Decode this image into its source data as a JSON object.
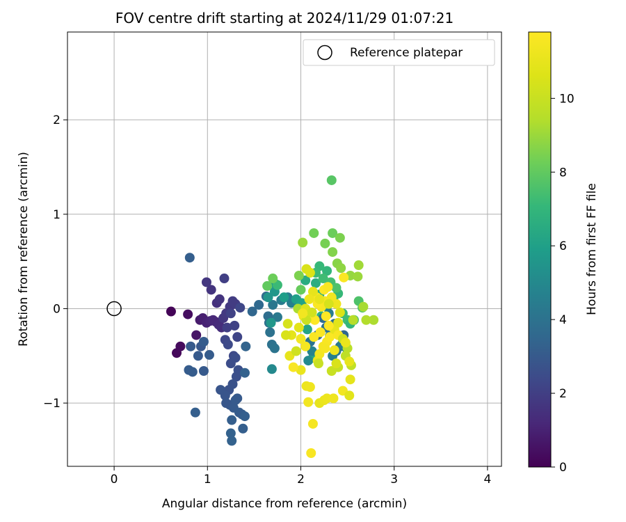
{
  "chart_data": {
    "type": "scatter",
    "title": "FOV centre drift starting at 2024/11/29 01:07:21",
    "xlabel": "Angular distance from reference (arcmin)",
    "ylabel": "Rotation from reference (arcmin)",
    "xlim": [
      -0.5,
      4.15
    ],
    "ylim": [
      -1.67,
      2.93
    ],
    "xticks": [
      0,
      1,
      2,
      3,
      4
    ],
    "yticks": [
      -1,
      0,
      1,
      2
    ],
    "xtick_labels": [
      "0",
      "1",
      "2",
      "3",
      "4"
    ],
    "ytick_labels": [
      "−1",
      "0",
      "1",
      "2"
    ],
    "grid": true,
    "legend": {
      "label": "Reference platepar",
      "position": "top-right"
    },
    "reference_point": {
      "x": 0,
      "y": 0
    },
    "colorbar": {
      "label": "Hours from first FF file",
      "range": [
        0,
        11.8
      ],
      "ticks": [
        0,
        2,
        4,
        6,
        8,
        10
      ],
      "tick_labels": [
        "0",
        "2",
        "4",
        "6",
        "8",
        "10"
      ],
      "colormap": "viridis"
    },
    "series": [
      {
        "points": [
          [
            0.61,
            -0.03,
            0.1
          ],
          [
            0.67,
            -0.47,
            0.2
          ],
          [
            0.71,
            -0.4,
            0.3
          ],
          [
            0.79,
            -0.06,
            0.4
          ],
          [
            0.88,
            -0.28,
            0.6
          ],
          [
            0.92,
            -0.12,
            0.8
          ],
          [
            0.95,
            -0.1,
            0.9
          ],
          [
            0.99,
            -0.15,
            1.0
          ],
          [
            1.03,
            -0.13,
            1.1
          ],
          [
            1.06,
            -0.12,
            1.2
          ],
          [
            1.09,
            -0.14,
            1.2
          ],
          [
            1.12,
            -0.17,
            1.3
          ],
          [
            1.15,
            -0.2,
            1.4
          ],
          [
            1.1,
            0.06,
            1.5
          ],
          [
            1.13,
            0.1,
            1.6
          ],
          [
            1.04,
            0.2,
            1.6
          ],
          [
            0.99,
            0.28,
            1.7
          ],
          [
            1.17,
            -0.1,
            1.7
          ],
          [
            1.2,
            -0.05,
            1.8
          ],
          [
            1.24,
            0.02,
            1.8
          ],
          [
            1.27,
            0.08,
            1.9
          ],
          [
            1.3,
            0.05,
            1.9
          ],
          [
            1.18,
            0.32,
            2.0
          ],
          [
            1.21,
            -0.2,
            2.0
          ],
          [
            1.25,
            -0.05,
            2.1
          ],
          [
            1.29,
            -0.18,
            2.1
          ],
          [
            1.32,
            -0.3,
            2.2
          ],
          [
            1.35,
            0.01,
            2.3
          ],
          [
            1.19,
            -0.33,
            2.3
          ],
          [
            1.22,
            -0.38,
            2.4
          ],
          [
            1.28,
            -0.5,
            2.4
          ],
          [
            1.3,
            -0.52,
            2.5
          ],
          [
            1.25,
            -0.58,
            2.5
          ],
          [
            1.33,
            -0.65,
            2.6
          ],
          [
            1.31,
            -0.72,
            2.6
          ],
          [
            1.27,
            -0.8,
            2.7
          ],
          [
            1.23,
            -0.86,
            2.7
          ],
          [
            1.19,
            -0.92,
            2.8
          ],
          [
            1.14,
            -0.86,
            2.8
          ],
          [
            1.2,
            -1.0,
            2.9
          ],
          [
            1.24,
            -1.02,
            2.9
          ],
          [
            1.28,
            -1.05,
            3.0
          ],
          [
            1.3,
            -0.97,
            3.0
          ],
          [
            1.32,
            -0.95,
            3.0
          ],
          [
            1.34,
            -1.1,
            3.1
          ],
          [
            1.37,
            -1.12,
            3.1
          ],
          [
            1.4,
            -1.14,
            3.2
          ],
          [
            1.38,
            -1.27,
            3.2
          ],
          [
            1.26,
            -1.18,
            3.2
          ],
          [
            1.25,
            -1.32,
            3.3
          ],
          [
            1.26,
            -1.4,
            3.3
          ],
          [
            1.4,
            -0.68,
            3.3
          ],
          [
            1.41,
            -0.4,
            3.4
          ],
          [
            0.93,
            -0.4,
            2.9
          ],
          [
            0.9,
            -0.5,
            3.0
          ],
          [
            0.96,
            -0.66,
            3.0
          ],
          [
            0.8,
            -0.65,
            3.1
          ],
          [
            0.84,
            -0.67,
            3.1
          ],
          [
            0.87,
            -1.1,
            3.2
          ],
          [
            0.81,
            0.54,
            3.2
          ],
          [
            0.82,
            -0.4,
            3.0
          ],
          [
            0.96,
            -0.35,
            3.1
          ],
          [
            1.02,
            -0.49,
            3.1
          ],
          [
            1.48,
            -0.03,
            3.5
          ],
          [
            1.55,
            0.04,
            3.6
          ],
          [
            1.63,
            0.13,
            3.7
          ],
          [
            1.65,
            -0.08,
            3.8
          ],
          [
            1.66,
            -0.15,
            3.9
          ],
          [
            1.67,
            -0.25,
            4.0
          ],
          [
            1.69,
            -0.38,
            4.0
          ],
          [
            1.72,
            -0.42,
            4.1
          ],
          [
            1.7,
            0.04,
            4.2
          ],
          [
            1.75,
            -0.09,
            4.3
          ],
          [
            1.79,
            0.09,
            4.4
          ],
          [
            1.86,
            0.12,
            4.5
          ],
          [
            1.9,
            0.06,
            4.6
          ],
          [
            1.69,
            -0.64,
            5.0
          ],
          [
            1.72,
            0.18,
            5.6
          ],
          [
            1.65,
            0.12,
            5.5
          ],
          [
            1.68,
            -0.15,
            5.6
          ],
          [
            1.73,
            0.26,
            5.8
          ],
          [
            1.82,
            0.12,
            5.9
          ],
          [
            1.95,
            0.1,
            6.0
          ],
          [
            2.01,
            0.06,
            6.1
          ],
          [
            2.07,
            -0.22,
            6.2
          ],
          [
            2.13,
            -0.52,
            6.3
          ],
          [
            2.05,
            0.3,
            6.5
          ],
          [
            2.16,
            0.27,
            6.6
          ],
          [
            2.2,
            0.15,
            6.7
          ],
          [
            2.22,
            -0.08,
            6.8
          ],
          [
            2.28,
            0.02,
            6.9
          ],
          [
            2.35,
            0.1,
            7.0
          ],
          [
            2.4,
            0.16,
            7.1
          ],
          [
            2.45,
            -0.05,
            7.2
          ],
          [
            2.5,
            -0.12,
            7.3
          ],
          [
            2.53,
            -0.16,
            7.0
          ],
          [
            2.57,
            -0.12,
            7.5
          ],
          [
            2.62,
            0.08,
            7.6
          ],
          [
            2.66,
            0.01,
            7.7
          ],
          [
            2.28,
            0.4,
            7.0
          ],
          [
            2.2,
            0.45,
            7.1
          ],
          [
            2.16,
            0.38,
            7.2
          ],
          [
            2.24,
            0.32,
            7.3
          ],
          [
            2.32,
            0.28,
            7.4
          ],
          [
            2.38,
            0.22,
            7.6
          ],
          [
            2.46,
            -0.28,
            3.5
          ],
          [
            2.42,
            -0.4,
            3.8
          ],
          [
            2.38,
            -0.45,
            4.2
          ],
          [
            2.34,
            -0.5,
            4.6
          ],
          [
            2.44,
            -0.38,
            4.4
          ],
          [
            2.49,
            -0.42,
            4.8
          ],
          [
            2.31,
            -0.29,
            4.3
          ],
          [
            2.27,
            -0.2,
            4.0
          ],
          [
            2.36,
            -0.16,
            3.9
          ],
          [
            2.3,
            -0.05,
            4.5
          ],
          [
            2.24,
            -0.1,
            3.7
          ],
          [
            2.18,
            -0.28,
            3.6
          ],
          [
            2.1,
            -0.35,
            4.1
          ],
          [
            2.08,
            -0.55,
            5.0
          ],
          [
            2.12,
            -0.45,
            4.7
          ],
          [
            2.33,
            1.36,
            7.8
          ],
          [
            2.34,
            0.8,
            8.2
          ],
          [
            2.14,
            0.8,
            8.3
          ],
          [
            2.42,
            0.75,
            8.5
          ],
          [
            2.26,
            0.69,
            8.4
          ],
          [
            2.34,
            0.6,
            8.6
          ],
          [
            2.02,
            0.7,
            9.0
          ],
          [
            2.39,
            0.48,
            8.7
          ],
          [
            2.43,
            0.43,
            8.8
          ],
          [
            2.53,
            0.35,
            8.9
          ],
          [
            2.61,
            0.34,
            9.0
          ],
          [
            2.62,
            0.46,
            9.1
          ],
          [
            2.67,
            0.02,
            9.2
          ],
          [
            2.78,
            -0.12,
            9.3
          ],
          [
            2.7,
            -0.12,
            9.4
          ],
          [
            2.56,
            -0.12,
            9.5
          ],
          [
            2.5,
            -0.42,
            9.6
          ],
          [
            2.48,
            -0.5,
            9.7
          ],
          [
            2.54,
            -0.6,
            9.8
          ],
          [
            2.4,
            -0.62,
            9.9
          ],
          [
            2.33,
            -0.66,
            10.0
          ],
          [
            1.75,
            0.25,
            7.2
          ],
          [
            1.7,
            0.32,
            8.2
          ],
          [
            1.64,
            0.24,
            8.0
          ],
          [
            2.0,
            0.2,
            8.1
          ],
          [
            1.98,
            0.35,
            8.5
          ],
          [
            1.97,
            0.0,
            9.3
          ],
          [
            2.06,
            0.42,
            10.5
          ],
          [
            2.1,
            0.38,
            10.6
          ],
          [
            2.05,
            0.0,
            10.7
          ],
          [
            1.98,
            -0.2,
            10.8
          ],
          [
            1.9,
            -0.28,
            10.9
          ],
          [
            1.88,
            -0.5,
            11.0
          ],
          [
            2.0,
            -0.65,
            11.1
          ],
          [
            2.06,
            -0.82,
            11.2
          ],
          [
            2.1,
            -0.83,
            11.3
          ],
          [
            2.08,
            -0.99,
            11.4
          ],
          [
            2.13,
            -1.22,
            11.5
          ],
          [
            2.11,
            -1.53,
            11.6
          ],
          [
            2.2,
            -1.0,
            11.0
          ],
          [
            2.25,
            -0.97,
            11.1
          ],
          [
            2.28,
            -0.95,
            11.2
          ],
          [
            2.35,
            -0.95,
            11.3
          ],
          [
            2.45,
            -0.87,
            11.4
          ],
          [
            2.52,
            -0.92,
            10.8
          ],
          [
            2.53,
            -0.75,
            10.9
          ],
          [
            2.52,
            -0.56,
            11.0
          ],
          [
            2.18,
            -0.55,
            11.2
          ],
          [
            2.2,
            -0.48,
            11.4
          ],
          [
            2.24,
            -0.4,
            11.5
          ],
          [
            2.28,
            -0.35,
            11.6
          ],
          [
            2.31,
            -0.3,
            11.7
          ],
          [
            2.36,
            -0.22,
            11.0
          ],
          [
            2.4,
            -0.15,
            10.8
          ],
          [
            2.42,
            -0.04,
            10.6
          ],
          [
            2.38,
            0.05,
            11.3
          ],
          [
            2.33,
            0.12,
            11.4
          ],
          [
            2.26,
            0.08,
            11.5
          ],
          [
            2.22,
            0.02,
            11.6
          ],
          [
            2.17,
            0.12,
            11.7
          ],
          [
            2.13,
            0.18,
            11.0
          ],
          [
            2.09,
            0.1,
            11.2
          ],
          [
            2.03,
            -0.08,
            11.3
          ],
          [
            2.0,
            -0.32,
            11.4
          ],
          [
            2.05,
            -0.4,
            11.5
          ],
          [
            2.14,
            -0.3,
            11.6
          ],
          [
            2.21,
            -0.25,
            11.7
          ],
          [
            2.3,
            -0.18,
            11.8
          ],
          [
            2.46,
            0.33,
            11.7
          ],
          [
            2.25,
            0.2,
            11.8
          ],
          [
            2.29,
            0.23,
            11.6
          ],
          [
            2.18,
            0.05,
            11.7
          ],
          [
            2.15,
            -0.12,
            11.8
          ],
          [
            2.26,
            -0.42,
            11.5
          ],
          [
            2.4,
            -0.28,
            11.6
          ],
          [
            1.95,
            -0.45,
            10.2
          ],
          [
            1.86,
            -0.16,
            10.4
          ],
          [
            1.84,
            -0.28,
            10.5
          ],
          [
            2.06,
            -0.12,
            10.1
          ],
          [
            2.12,
            -0.04,
            10.3
          ],
          [
            2.19,
            -0.58,
            10.0
          ],
          [
            2.38,
            -0.58,
            10.5
          ],
          [
            2.45,
            -0.32,
            10.2
          ],
          [
            2.48,
            -0.36,
            11.1
          ],
          [
            2.36,
            -0.44,
            11.3
          ],
          [
            1.92,
            -0.62,
            11.6
          ],
          [
            2.02,
            -0.05,
            11.4
          ],
          [
            2.2,
            0.1,
            11.0
          ],
          [
            2.3,
            0.05,
            10.4
          ],
          [
            2.27,
            -0.08,
            11.9
          ]
        ]
      }
    ]
  }
}
